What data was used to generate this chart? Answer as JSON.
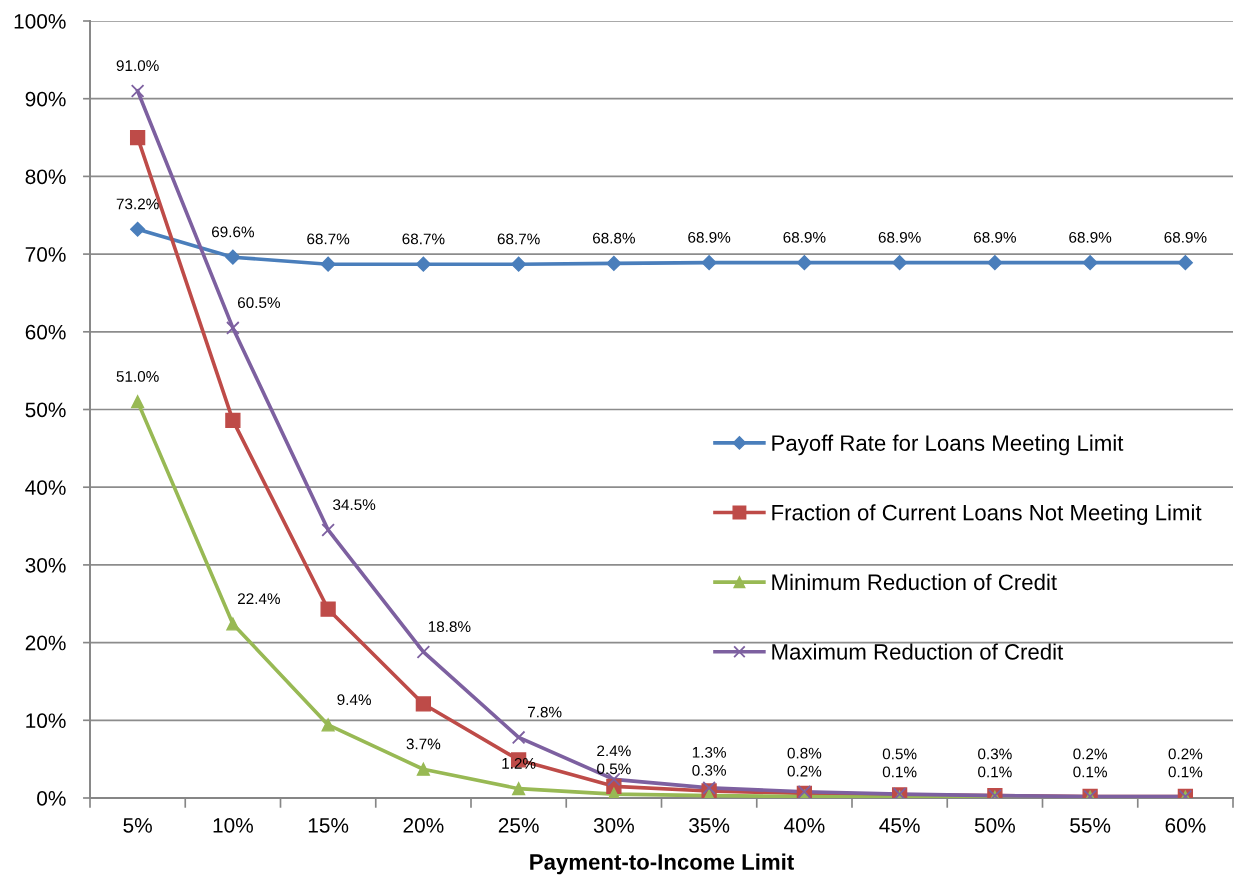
{
  "chart_data": {
    "type": "line",
    "categories": [
      "5%",
      "10%",
      "15%",
      "20%",
      "25%",
      "30%",
      "35%",
      "40%",
      "45%",
      "50%",
      "55%",
      "60%"
    ],
    "series": [
      {
        "name": "Payoff Rate for Loans Meeting Limit",
        "color": "#4a7ebb",
        "marker": "diamond",
        "values": [
          73.2,
          69.6,
          68.7,
          68.7,
          68.7,
          68.8,
          68.9,
          68.9,
          68.9,
          68.9,
          68.9,
          68.9
        ],
        "value_labels": [
          "73.2%",
          "69.6%",
          "68.7%",
          "68.7%",
          "68.7%",
          "68.8%",
          "68.9%",
          "68.9%",
          "68.9%",
          "68.9%",
          "68.9%",
          "68.9%"
        ]
      },
      {
        "name": "Fraction of Current Loans Not Meeting Limit",
        "color": "#be4b48",
        "marker": "square",
        "values": [
          85,
          48.6,
          24.3,
          12.1,
          4.9,
          1.5,
          0.9,
          0.6,
          0.4,
          0.3,
          0.2,
          0.2
        ]
      },
      {
        "name": "Minimum Reduction of Credit",
        "color": "#98b954",
        "marker": "triangle",
        "values": [
          51.0,
          22.4,
          9.4,
          3.7,
          1.2,
          0.5,
          0.3,
          0.2,
          0.1,
          0.1,
          0.1,
          0.1
        ],
        "value_labels": [
          "51.0%",
          "22.4%",
          "9.4%",
          "3.7%",
          "1.2%",
          "0.5%",
          "0.3%",
          "0.2%",
          "0.1%",
          "0.1%",
          "0.1%",
          "0.1%"
        ]
      },
      {
        "name": "Maximum Reduction of Credit",
        "color": "#7d60a0",
        "marker": "cross",
        "values": [
          91.0,
          60.5,
          34.5,
          18.8,
          7.8,
          2.4,
          1.3,
          0.8,
          0.5,
          0.3,
          0.2,
          0.2
        ],
        "value_labels": [
          "91.0%",
          "60.5%",
          "34.5%",
          "18.8%",
          "7.8%",
          "2.4%",
          "1.3%",
          "0.8%",
          "0.5%",
          "0.3%",
          "0.2%",
          "0.2%"
        ]
      }
    ],
    "xlabel": "Payment-to-Income Limit",
    "ylim": [
      0,
      100
    ],
    "yticks": [
      {
        "value": 0,
        "label": "0%"
      },
      {
        "value": 10,
        "label": "10%"
      },
      {
        "value": 20,
        "label": "20%"
      },
      {
        "value": 30,
        "label": "30%"
      },
      {
        "value": 40,
        "label": "40%"
      },
      {
        "value": 50,
        "label": "50%"
      },
      {
        "value": 60,
        "label": "60%"
      },
      {
        "value": 70,
        "label": "70%"
      },
      {
        "value": 80,
        "label": "80%"
      },
      {
        "value": 90,
        "label": "90%"
      },
      {
        "value": 100,
        "label": "100%"
      }
    ],
    "grid": "y",
    "legend": "right",
    "line_style": "solid"
  }
}
